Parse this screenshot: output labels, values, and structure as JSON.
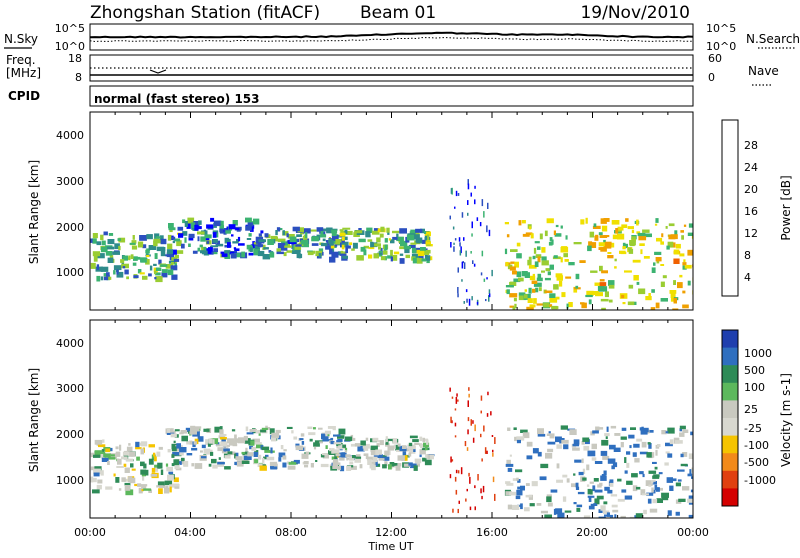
{
  "header": {
    "station": "Zhongshan Station (fitACF)",
    "beam": "Beam 01",
    "date": "19/Nov/2010"
  },
  "top_panels": {
    "nsky_label": "N.Sky",
    "nsearch_label": "N.Search",
    "nsky_ticks": [
      "10^5",
      "10^0"
    ],
    "nsearch_ticks": [
      "10^5",
      "10^0"
    ],
    "freq_label": "Freq.",
    "freq_unit": "[MHz]",
    "freq_ticks": [
      "18",
      "8"
    ],
    "nave_label": "Nave",
    "nave_ticks": [
      "60",
      "0"
    ],
    "cpid_label": "CPID",
    "cpid_text": "normal (fast stereo) 153"
  },
  "colors": {
    "velocity_scale": [
      "#1f3fae",
      "#2f6fbf",
      "#2e8b57",
      "#5cb85c",
      "#c9c9c0",
      "#d8d8d0",
      "#f5c400",
      "#f28a1a",
      "#e04010",
      "#d40000"
    ],
    "power_scale": [
      "#0000ff",
      "#2b4fbf",
      "#2e8b8b",
      "#3cb371",
      "#9acd32",
      "#f0e000",
      "#f0a000",
      "#f06000",
      "#e00000"
    ]
  },
  "chart_data": [
    {
      "type": "heatmap",
      "name": "power",
      "ylabel": "Slant Range [km]",
      "y_ticks": [
        "4000",
        "3000",
        "2000",
        "1000"
      ],
      "ylim": [
        180,
        4500
      ],
      "colorbar_label": "Power [dB]",
      "colorbar_ticks": [
        "28",
        "24",
        "20",
        "16",
        "12",
        "8",
        "4"
      ],
      "clim": [
        0,
        32
      ],
      "echo_regions": [
        {
          "t_start": "00:00",
          "t_end": "03:30",
          "range_km": [
            900,
            1900
          ],
          "power_db": 12
        },
        {
          "t_start": "03:00",
          "t_end": "06:30",
          "range_km": [
            1400,
            2200
          ],
          "power_db": 8
        },
        {
          "t_start": "06:30",
          "t_end": "10:00",
          "range_km": [
            1400,
            2000
          ],
          "power_db": 10
        },
        {
          "t_start": "09:30",
          "t_end": "13:30",
          "range_km": [
            1300,
            2000
          ],
          "power_db": 12
        },
        {
          "t_start": "16:30",
          "t_end": "24:00",
          "range_km": [
            200,
            2200
          ],
          "power_db": 18
        }
      ]
    },
    {
      "type": "heatmap",
      "name": "velocity",
      "ylabel": "Slant Range [km]",
      "y_ticks": [
        "4000",
        "3000",
        "2000",
        "1000"
      ],
      "ylim": [
        180,
        4500
      ],
      "colorbar_label": "Velocity [m s-1]",
      "colorbar_ticks": [
        "1000",
        "500",
        "100",
        "25",
        "-25",
        "-100",
        "-500",
        "-1000"
      ],
      "clim": [
        -1200,
        1200
      ],
      "echo_regions": [
        {
          "t_start": "00:00",
          "t_end": "03:30",
          "range_km": [
            800,
            1900
          ],
          "velocity_ms": -100
        },
        {
          "t_start": "03:00",
          "t_end": "10:00",
          "range_km": [
            1300,
            2200
          ],
          "velocity_ms": 0
        },
        {
          "t_start": "09:30",
          "t_end": "13:30",
          "range_km": [
            1300,
            2000
          ],
          "velocity_ms": 0
        },
        {
          "t_start": "16:30",
          "t_end": "24:00",
          "range_km": [
            200,
            2200
          ],
          "velocity_ms": 200
        }
      ]
    }
  ],
  "x_axis": {
    "label": "Time UT",
    "ticks": [
      "00:00",
      "04:00",
      "08:00",
      "12:00",
      "16:00",
      "20:00",
      "00:00"
    ]
  }
}
